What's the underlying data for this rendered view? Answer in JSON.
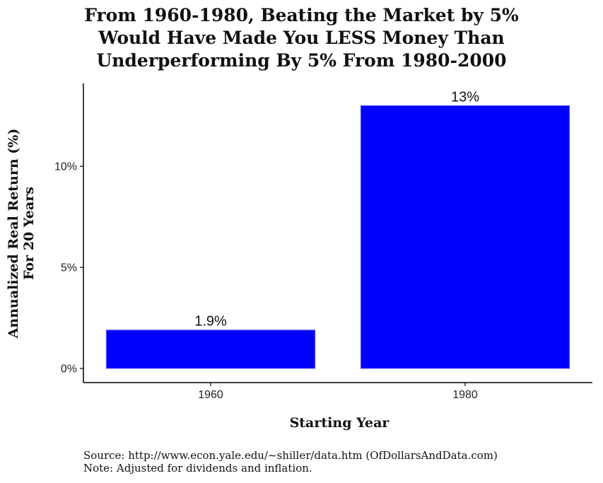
{
  "chart_data": {
    "type": "bar",
    "title_lines": [
      "From 1960-1980, Beating the Market by 5%",
      "Would Have Made You LESS Money Than",
      "Underperforming By 5% From 1980-2000"
    ],
    "categories": [
      "1960",
      "1980"
    ],
    "values": [
      1.9,
      13
    ],
    "data_labels": [
      "1.9%",
      "13%"
    ],
    "bar_color": "#0000ff",
    "xlabel": "Starting Year",
    "ylabel_lines": [
      "Annualized Real Return (%)",
      "For 20 Years"
    ],
    "yticks": [
      {
        "value": 0,
        "label": "0%"
      },
      {
        "value": 5,
        "label": "5%"
      },
      {
        "value": 10,
        "label": "10%"
      }
    ],
    "ylim": [
      -0.7,
      14.1
    ],
    "grid": false,
    "legend": "none"
  },
  "footer": {
    "source": "Source:  http://www.econ.yale.edu/~shiller/data.htm (OfDollarsAndData.com)",
    "note": "Note: Adjusted for dividends and inflation."
  }
}
